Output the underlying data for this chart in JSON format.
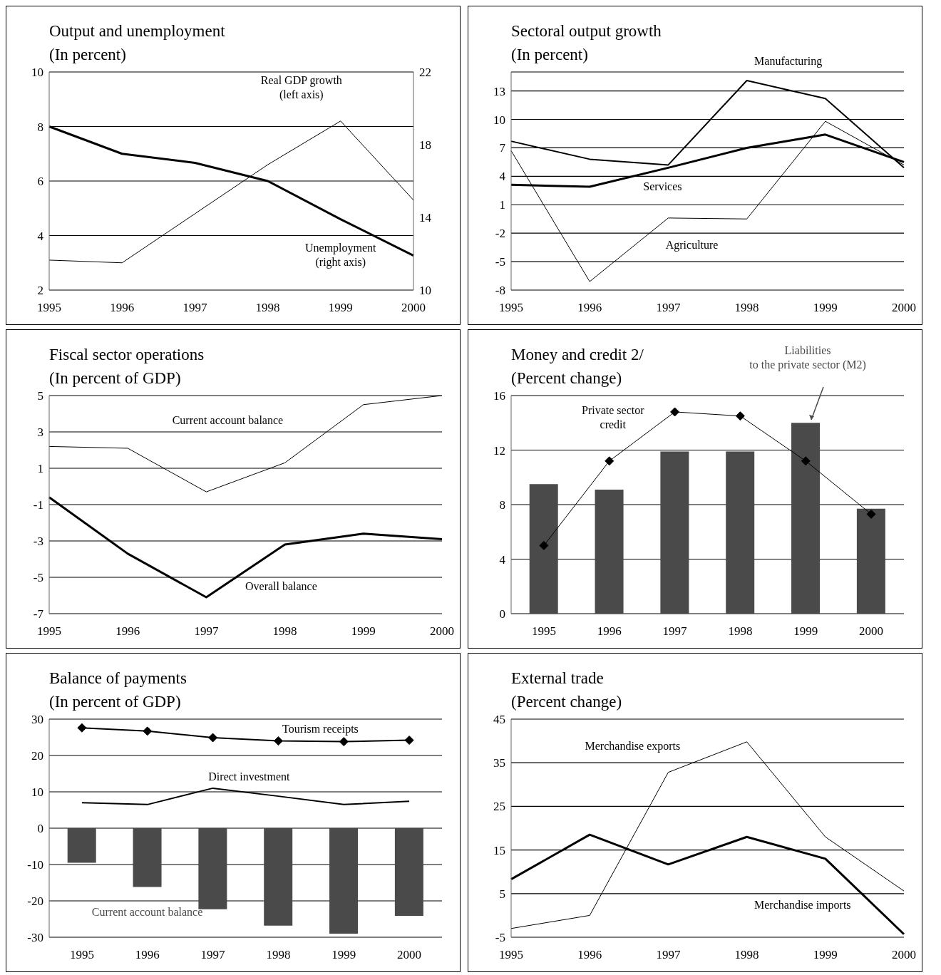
{
  "chart_data": [
    {
      "type": "line",
      "title": "Output and unemployment",
      "subtitle": "(In percent)",
      "categories": [
        "1995",
        "1996",
        "1997",
        "1998",
        "1999",
        "2000"
      ],
      "ylim": [
        2,
        10
      ],
      "yticks": [
        2,
        4,
        6,
        8,
        10
      ],
      "y2lim": [
        10,
        22
      ],
      "y2ticks": [
        10,
        14,
        18,
        22
      ],
      "grid": "y",
      "series": [
        {
          "name": "Real GDP growth\n(left axis)",
          "color": "#000000",
          "values": [
            3.1,
            3.0,
            4.8,
            6.6,
            8.2,
            5.3
          ]
        },
        {
          "name": "Unemployment\n(right axis)",
          "color": "#000000",
          "axis": "y2",
          "values": [
            19.0,
            17.5,
            17.0,
            16.0,
            13.9,
            11.9
          ]
        }
      ]
    },
    {
      "type": "line",
      "title": "Sectoral output growth",
      "subtitle": "(In percent)",
      "categories": [
        "1995",
        "1996",
        "1997",
        "1998",
        "1999",
        "2000"
      ],
      "ylim": [
        -8,
        15
      ],
      "yticks": [
        -8,
        -5,
        -2,
        1,
        4,
        7,
        10,
        13
      ],
      "grid": "y",
      "series": [
        {
          "name": "Manufacturing",
          "color": "#000000",
          "values": [
            7.7,
            5.8,
            5.2,
            14.1,
            12.2,
            4.9
          ]
        },
        {
          "name": "Services",
          "color": "#000000",
          "values": [
            3.1,
            2.9,
            4.9,
            7.0,
            8.4,
            5.5
          ]
        },
        {
          "name": "Agriculture",
          "color": "#000000",
          "values": [
            6.7,
            -7.1,
            -0.4,
            -0.5,
            9.8,
            5.2
          ]
        }
      ]
    },
    {
      "type": "line",
      "title": "Fiscal sector operations",
      "subtitle": "(In percent of GDP)",
      "categories": [
        "1995",
        "1996",
        "1997",
        "1998",
        "1999",
        "2000"
      ],
      "ylim": [
        -7,
        5
      ],
      "yticks": [
        -7,
        -5,
        -3,
        -1,
        1,
        3,
        5
      ],
      "grid": "y",
      "series": [
        {
          "name": "Current account balance",
          "color": "#000000",
          "values": [
            2.2,
            2.1,
            -0.3,
            1.3,
            4.5,
            5.0
          ]
        },
        {
          "name": "Overall balance",
          "color": "#000000",
          "values": [
            -0.6,
            -3.7,
            -6.1,
            -3.2,
            -2.6,
            -2.9
          ]
        }
      ]
    },
    {
      "type": "bar",
      "title": "Money and credit 2/",
      "subtitle": "(Percent change)",
      "categories": [
        "1995",
        "1996",
        "1997",
        "1998",
        "1999",
        "2000"
      ],
      "ylim": [
        0,
        16
      ],
      "yticks": [
        0,
        4,
        8,
        12,
        16
      ],
      "grid": "y",
      "series": [
        {
          "name": "Liabilities\nto the private sector (M2)",
          "color": "#4a4a4a",
          "values": [
            9.5,
            9.1,
            11.9,
            11.9,
            14.0,
            7.7
          ]
        },
        {
          "name": "Private sector\ncredit",
          "type": "line",
          "marker": "diamond",
          "color": "#000000",
          "values": [
            5.0,
            11.2,
            14.8,
            14.5,
            11.2,
            7.3
          ]
        }
      ]
    },
    {
      "type": "bar",
      "title": "Balance of payments",
      "subtitle": "(In percent of GDP)",
      "categories": [
        "1995",
        "1996",
        "1997",
        "1998",
        "1999",
        "2000"
      ],
      "ylim": [
        -30,
        30
      ],
      "yticks": [
        -30,
        -20,
        -10,
        0,
        10,
        20,
        30
      ],
      "grid": "y",
      "series": [
        {
          "name": "Current account balance",
          "color": "#4a4a4a",
          "values": [
            -9.5,
            -16.2,
            -22.3,
            -26.8,
            -29.0,
            -24.1
          ]
        },
        {
          "name": "Tourism receipts",
          "type": "line",
          "marker": "diamond",
          "color": "#000000",
          "values": [
            27.6,
            26.7,
            24.9,
            24.0,
            23.8,
            24.2
          ]
        },
        {
          "name": "Direct investment",
          "type": "line",
          "color": "#000000",
          "values": [
            7.0,
            6.5,
            11.0,
            8.8,
            6.5,
            7.4
          ]
        }
      ]
    },
    {
      "type": "line",
      "title": "External trade",
      "subtitle": "(Percent change)",
      "categories": [
        "1995",
        "1996",
        "1997",
        "1998",
        "1999",
        "2000"
      ],
      "ylim": [
        -5,
        45
      ],
      "yticks": [
        -5,
        5,
        15,
        25,
        35,
        45
      ],
      "grid": "y",
      "series": [
        {
          "name": "Merchandise exports",
          "color": "#000000",
          "values": [
            -3.0,
            0.0,
            32.8,
            39.8,
            18.0,
            5.6
          ]
        },
        {
          "name": "Merchandise imports",
          "color": "#000000",
          "values": [
            8.3,
            18.5,
            11.7,
            18.0,
            13.0,
            -4.3
          ]
        }
      ]
    }
  ]
}
